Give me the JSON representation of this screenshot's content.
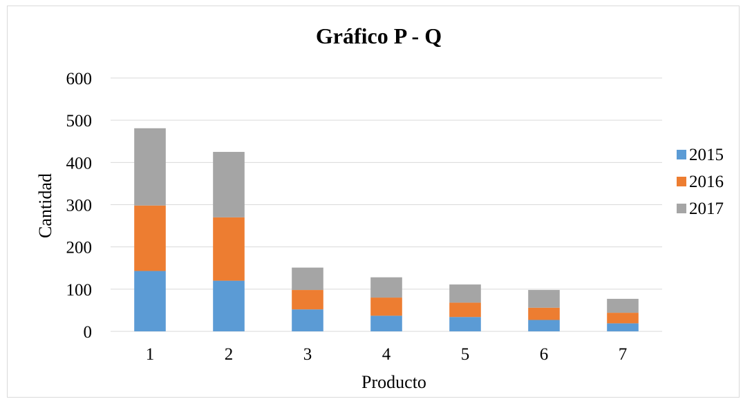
{
  "chart_data": {
    "type": "bar",
    "stacked": true,
    "title": "Gráfico P - Q",
    "xlabel": "Producto",
    "ylabel": "Cantidad",
    "categories": [
      "1",
      "2",
      "3",
      "4",
      "5",
      "6",
      "7"
    ],
    "ylim": [
      0,
      600
    ],
    "yticks": [
      "0",
      "100",
      "200",
      "300",
      "400",
      "500",
      "600"
    ],
    "grid": true,
    "legend_position": "right",
    "series": [
      {
        "name": "2015",
        "color": "#5b9bd5",
        "values": [
          143,
          120,
          52,
          37,
          34,
          27,
          19
        ]
      },
      {
        "name": "2016",
        "color": "#ed7d31",
        "values": [
          155,
          150,
          46,
          43,
          34,
          29,
          25
        ]
      },
      {
        "name": "2017",
        "color": "#a5a5a5",
        "values": [
          183,
          155,
          53,
          48,
          43,
          42,
          33
        ]
      }
    ]
  }
}
